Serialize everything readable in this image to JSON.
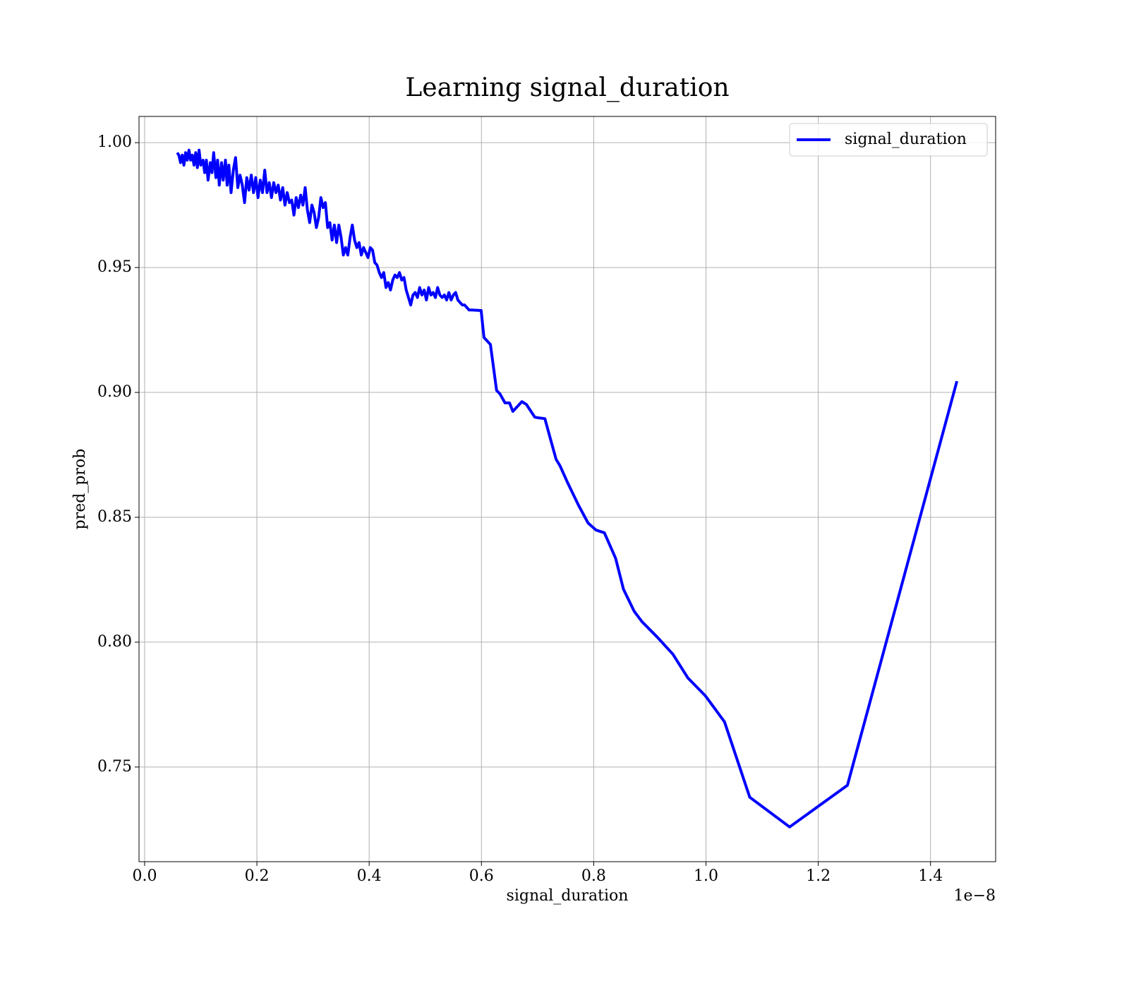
{
  "chart_data": {
    "type": "line",
    "title": "Learning signal_duration",
    "x_label": "signal_duration",
    "y_label": "pred_prob",
    "x_offset_label": "1e−8",
    "x": [
      0.058,
      0.061,
      0.064,
      0.067,
      0.07,
      0.073,
      0.076,
      0.079,
      0.082,
      0.085,
      0.088,
      0.091,
      0.094,
      0.097,
      0.1,
      0.104,
      0.107,
      0.11,
      0.113,
      0.117,
      0.12,
      0.123,
      0.127,
      0.13,
      0.133,
      0.137,
      0.14,
      0.144,
      0.147,
      0.15,
      0.154,
      0.158,
      0.162,
      0.166,
      0.17,
      0.174,
      0.178,
      0.182,
      0.186,
      0.19,
      0.194,
      0.198,
      0.202,
      0.206,
      0.21,
      0.214,
      0.218,
      0.222,
      0.226,
      0.23,
      0.234,
      0.238,
      0.242,
      0.246,
      0.25,
      0.254,
      0.258,
      0.262,
      0.266,
      0.27,
      0.274,
      0.278,
      0.282,
      0.286,
      0.29,
      0.294,
      0.298,
      0.302,
      0.306,
      0.31,
      0.314,
      0.318,
      0.322,
      0.326,
      0.33,
      0.334,
      0.338,
      0.342,
      0.346,
      0.35,
      0.354,
      0.358,
      0.362,
      0.366,
      0.37,
      0.374,
      0.378,
      0.382,
      0.386,
      0.39,
      0.394,
      0.398,
      0.402,
      0.406,
      0.41,
      0.414,
      0.418,
      0.422,
      0.426,
      0.43,
      0.434,
      0.438,
      0.442,
      0.446,
      0.45,
      0.454,
      0.458,
      0.462,
      0.466,
      0.47,
      0.474,
      0.478,
      0.482,
      0.486,
      0.49,
      0.494,
      0.498,
      0.502,
      0.506,
      0.51,
      0.514,
      0.518,
      0.522,
      0.526,
      0.53,
      0.534,
      0.538,
      0.542,
      0.546,
      0.55,
      0.554,
      0.558,
      0.562,
      0.566,
      0.57,
      0.574,
      0.578,
      0.582,
      0.5995,
      0.6045,
      0.616,
      0.627,
      0.633,
      0.642,
      0.65,
      0.656,
      0.672,
      0.68,
      0.695,
      0.702,
      0.713,
      0.724,
      0.733,
      0.74,
      0.753,
      0.773,
      0.79,
      0.804,
      0.819,
      0.839,
      0.853,
      0.872,
      0.886,
      0.912,
      0.941,
      0.968,
      0.999,
      1.033,
      1.078,
      1.149,
      1.252,
      1.447
    ],
    "series": [
      {
        "name": "signal_duration",
        "color": "#0000ff",
        "values": [
          0.996,
          0.995,
          0.992,
          0.995,
          0.991,
          0.996,
          0.993,
          0.997,
          0.993,
          0.995,
          0.991,
          0.996,
          0.99,
          0.997,
          0.991,
          0.993,
          0.988,
          0.993,
          0.985,
          0.992,
          0.988,
          0.996,
          0.986,
          0.993,
          0.983,
          0.992,
          0.985,
          0.993,
          0.983,
          0.991,
          0.98,
          0.989,
          0.994,
          0.982,
          0.987,
          0.983,
          0.976,
          0.986,
          0.981,
          0.987,
          0.98,
          0.986,
          0.978,
          0.985,
          0.98,
          0.989,
          0.98,
          0.984,
          0.978,
          0.984,
          0.98,
          0.983,
          0.977,
          0.982,
          0.975,
          0.98,
          0.976,
          0.977,
          0.971,
          0.978,
          0.974,
          0.979,
          0.975,
          0.982,
          0.973,
          0.968,
          0.975,
          0.972,
          0.966,
          0.97,
          0.978,
          0.974,
          0.976,
          0.966,
          0.968,
          0.961,
          0.967,
          0.96,
          0.967,
          0.962,
          0.955,
          0.958,
          0.955,
          0.962,
          0.967,
          0.961,
          0.958,
          0.96,
          0.955,
          0.958,
          0.956,
          0.954,
          0.958,
          0.957,
          0.952,
          0.951,
          0.948,
          0.946,
          0.948,
          0.942,
          0.944,
          0.941,
          0.945,
          0.947,
          0.946,
          0.948,
          0.945,
          0.946,
          0.941,
          0.938,
          0.935,
          0.939,
          0.94,
          0.938,
          0.942,
          0.939,
          0.941,
          0.937,
          0.942,
          0.939,
          0.94,
          0.938,
          0.942,
          0.939,
          0.938,
          0.939,
          0.937,
          0.94,
          0.937,
          0.939,
          0.94,
          0.937,
          0.936,
          0.935,
          0.935,
          0.934,
          0.933,
          0.933,
          0.9328,
          0.922,
          0.9192,
          0.9008,
          0.8994,
          0.8958,
          0.8958,
          0.8924,
          0.8963,
          0.8952,
          0.8901,
          0.8898,
          0.8895,
          0.8805,
          0.8732,
          0.8706,
          0.8641,
          0.8548,
          0.8477,
          0.8449,
          0.8438,
          0.8336,
          0.8212,
          0.8124,
          0.8082,
          0.8023,
          0.7952,
          0.7856,
          0.7785,
          0.7681,
          0.7379,
          0.726,
          0.7427,
          0.9045
        ]
      }
    ],
    "xlim": [
      -0.01,
      1.516
    ],
    "ylim": [
      0.7121,
      1.0105
    ],
    "xticks": [
      {
        "value": 0,
        "label": "0.0"
      },
      0.2,
      0.4,
      0.6,
      0.8,
      {
        "value": 1,
        "label": "1.0"
      },
      1.2,
      1.4
    ],
    "yticks": [
      0.75,
      {
        "value": 0.8,
        "label": "0.80"
      },
      0.85,
      {
        "value": 0.9,
        "label": "0.90"
      },
      0.95,
      {
        "value": 1,
        "label": "1.00"
      }
    ],
    "grid": true,
    "legend": "upper right"
  }
}
